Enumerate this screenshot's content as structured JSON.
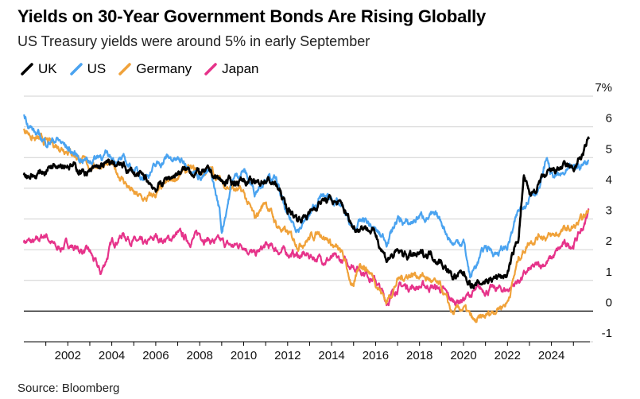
{
  "header": {
    "title": "Yields on 30-Year Government Bonds Are Rising Globally",
    "subtitle": "US Treasury yields were around 5% in early September"
  },
  "footer": {
    "source": "Source: Bloomberg"
  },
  "chart_data": {
    "type": "line",
    "title": "Yields on 30-Year Government Bonds Are Rising Globally",
    "subtitle": "US Treasury yields were around 5% in early September",
    "xlabel": "",
    "ylabel": "",
    "xlim": [
      2000.0,
      2025.75
    ],
    "ylim": [
      -1,
      7
    ],
    "x_ticks": [
      2002,
      2004,
      2006,
      2008,
      2010,
      2012,
      2014,
      2016,
      2018,
      2020,
      2022,
      2024
    ],
    "x_tick_labels": [
      "2002",
      "2004",
      "2006",
      "2008",
      "2010",
      "2012",
      "2014",
      "2016",
      "2018",
      "2020",
      "2022",
      "2024"
    ],
    "y_ticks": [
      -1,
      0,
      1,
      2,
      3,
      4,
      5,
      6,
      7
    ],
    "y_tick_labels": [
      "-1",
      "0",
      "1",
      "2",
      "3",
      "4",
      "5",
      "6",
      "7%"
    ],
    "grid": "horizontal",
    "y_axis_side": "right",
    "legend_position": "top-left",
    "series": [
      {
        "name": "UK",
        "color": "#000000",
        "x": [
          2000.0,
          2000.5,
          2001.0,
          2001.5,
          2002.0,
          2002.5,
          2003.0,
          2003.5,
          2004.0,
          2004.5,
          2005.0,
          2005.5,
          2006.0,
          2006.5,
          2007.0,
          2007.5,
          2008.0,
          2008.5,
          2009.0,
          2009.5,
          2010.0,
          2010.5,
          2011.0,
          2011.5,
          2012.0,
          2012.5,
          2013.0,
          2013.5,
          2014.0,
          2014.5,
          2015.0,
          2015.5,
          2016.0,
          2016.5,
          2017.0,
          2017.5,
          2018.0,
          2018.5,
          2019.0,
          2019.5,
          2020.0,
          2020.5,
          2021.0,
          2021.5,
          2022.0,
          2022.5,
          2022.75,
          2023.0,
          2023.5,
          2024.0,
          2024.5,
          2025.0,
          2025.5,
          2025.7
        ],
        "y": [
          4.5,
          4.4,
          4.6,
          4.9,
          4.8,
          4.6,
          4.5,
          4.7,
          4.8,
          4.7,
          4.5,
          4.3,
          4.0,
          4.3,
          4.5,
          4.6,
          4.5,
          4.5,
          4.2,
          4.2,
          4.3,
          4.1,
          4.3,
          4.1,
          3.3,
          3.0,
          3.2,
          3.6,
          3.6,
          3.4,
          2.7,
          2.8,
          2.5,
          1.7,
          1.9,
          1.8,
          1.8,
          1.9,
          1.6,
          1.1,
          1.2,
          0.8,
          1.0,
          1.1,
          1.2,
          2.4,
          4.4,
          3.7,
          4.2,
          4.5,
          4.7,
          4.6,
          5.2,
          5.6
        ]
      },
      {
        "name": "US",
        "color": "#4aa3f0",
        "x": [
          2000.0,
          2000.5,
          2001.0,
          2001.5,
          2002.0,
          2002.5,
          2003.0,
          2003.5,
          2004.0,
          2004.5,
          2005.0,
          2005.5,
          2006.0,
          2006.5,
          2007.0,
          2007.5,
          2008.0,
          2008.5,
          2008.9,
          2009.0,
          2009.5,
          2010.0,
          2010.5,
          2011.0,
          2011.5,
          2012.0,
          2012.5,
          2013.0,
          2013.5,
          2014.0,
          2014.5,
          2015.0,
          2015.5,
          2016.0,
          2016.5,
          2017.0,
          2017.5,
          2018.0,
          2018.5,
          2019.0,
          2019.5,
          2020.0,
          2020.3,
          2020.5,
          2021.0,
          2021.5,
          2022.0,
          2022.5,
          2023.0,
          2023.5,
          2023.8,
          2024.0,
          2024.5,
          2025.0,
          2025.5,
          2025.7
        ],
        "y": [
          6.4,
          5.8,
          5.5,
          5.6,
          5.3,
          5.0,
          4.9,
          5.1,
          5.0,
          4.9,
          4.6,
          4.4,
          4.7,
          5.0,
          4.9,
          4.8,
          4.4,
          4.5,
          3.3,
          2.6,
          4.3,
          4.6,
          3.9,
          4.4,
          4.2,
          3.0,
          2.7,
          3.1,
          3.7,
          3.7,
          3.3,
          2.6,
          3.0,
          2.6,
          2.3,
          3.0,
          2.8,
          3.1,
          3.1,
          2.9,
          2.2,
          2.3,
          1.1,
          1.4,
          2.1,
          1.9,
          2.1,
          3.2,
          3.8,
          4.1,
          5.0,
          4.4,
          4.4,
          4.6,
          4.8,
          4.9
        ]
      },
      {
        "name": "Germany",
        "color": "#f0a23a",
        "x": [
          2000.0,
          2000.5,
          2001.0,
          2001.5,
          2002.0,
          2002.5,
          2003.0,
          2003.5,
          2004.0,
          2004.5,
          2005.0,
          2005.5,
          2006.0,
          2006.5,
          2007.0,
          2007.5,
          2008.0,
          2008.5,
          2009.0,
          2009.5,
          2010.0,
          2010.5,
          2011.0,
          2011.5,
          2012.0,
          2012.5,
          2013.0,
          2013.5,
          2014.0,
          2014.5,
          2015.0,
          2015.3,
          2015.6,
          2016.0,
          2016.5,
          2017.0,
          2017.5,
          2018.0,
          2018.5,
          2019.0,
          2019.5,
          2020.0,
          2020.5,
          2021.0,
          2021.5,
          2022.0,
          2022.5,
          2023.0,
          2023.5,
          2024.0,
          2024.5,
          2025.0,
          2025.5,
          2025.7
        ],
        "y": [
          6.0,
          5.6,
          5.5,
          5.4,
          5.3,
          5.0,
          4.7,
          4.8,
          4.7,
          4.3,
          3.8,
          3.6,
          3.8,
          4.1,
          4.4,
          4.6,
          4.5,
          4.6,
          4.2,
          4.0,
          3.8,
          3.0,
          3.6,
          2.8,
          2.5,
          2.2,
          2.4,
          2.6,
          2.2,
          1.8,
          0.7,
          1.6,
          1.4,
          1.0,
          0.3,
          1.0,
          1.2,
          1.2,
          1.0,
          0.7,
          -0.1,
          0.1,
          -0.4,
          -0.2,
          0.1,
          0.3,
          1.7,
          2.3,
          2.5,
          2.4,
          2.6,
          2.7,
          3.0,
          3.3
        ]
      },
      {
        "name": "Japan",
        "color": "#e6338a",
        "x": [
          2000.0,
          2000.5,
          2001.0,
          2001.5,
          2002.0,
          2002.5,
          2003.0,
          2003.5,
          2004.0,
          2004.5,
          2005.0,
          2005.5,
          2006.0,
          2006.5,
          2007.0,
          2007.5,
          2008.0,
          2008.5,
          2009.0,
          2009.5,
          2010.0,
          2010.5,
          2011.0,
          2011.5,
          2012.0,
          2012.5,
          2013.0,
          2013.5,
          2014.0,
          2014.5,
          2015.0,
          2015.5,
          2016.0,
          2016.5,
          2017.0,
          2017.5,
          2018.0,
          2018.5,
          2019.0,
          2019.5,
          2020.0,
          2020.5,
          2021.0,
          2021.5,
          2022.0,
          2022.5,
          2023.0,
          2023.5,
          2024.0,
          2024.5,
          2025.0,
          2025.5,
          2025.7
        ],
        "y": [
          2.3,
          2.2,
          2.5,
          2.0,
          2.2,
          2.0,
          1.9,
          1.2,
          2.2,
          2.5,
          2.3,
          2.1,
          2.4,
          2.3,
          2.5,
          2.3,
          2.5,
          2.3,
          2.2,
          2.1,
          2.2,
          1.8,
          2.1,
          2.0,
          1.9,
          1.8,
          1.8,
          1.7,
          1.7,
          1.6,
          1.5,
          1.3,
          1.0,
          0.3,
          0.8,
          0.8,
          0.8,
          0.8,
          0.7,
          0.3,
          0.4,
          0.6,
          0.7,
          0.7,
          0.7,
          1.0,
          1.3,
          1.5,
          1.7,
          2.1,
          2.2,
          2.8,
          3.3
        ]
      }
    ]
  }
}
